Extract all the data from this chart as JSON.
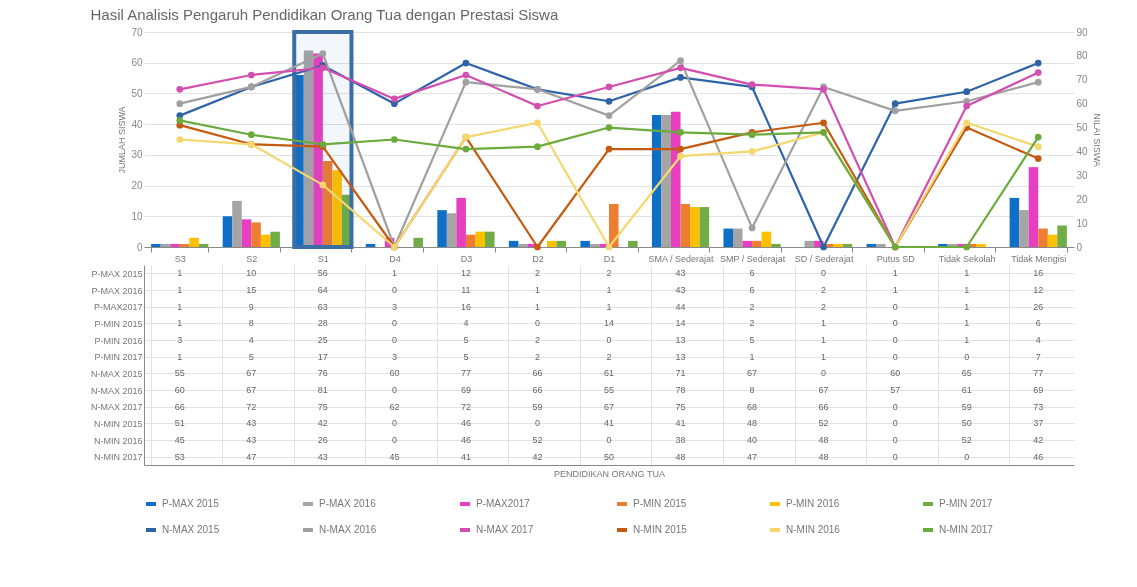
{
  "chart_data": {
    "type": "bar",
    "title": "Hasil Analisis Pengaruh Pendidikan Orang Tua dengan Prestasi Siswa",
    "annotations": [
      "PENDIDIKAN ORANG TUA"
    ],
    "ylabel": "JUMLAH SISWA",
    "y2label": "NILAI SISWA",
    "categories": [
      "S3",
      "S2",
      "S1",
      "D4",
      "D3",
      "D2",
      "D1",
      "SMA / Sederajat",
      "SMP / Sederajat",
      "SD / Sederajat",
      "Putus SD",
      "Tidak Sekolah",
      "Tidak Mengisi"
    ],
    "series": [
      {
        "name": "P-MAX 2015",
        "color": "#0f6fc6",
        "values": [
          1,
          10,
          56,
          1,
          12,
          2,
          2,
          43,
          6,
          0,
          1,
          1,
          16
        ]
      },
      {
        "name": "P-MAX 2016",
        "color": "#a5a5a5",
        "values": [
          1,
          15,
          64,
          0,
          11,
          1,
          1,
          43,
          6,
          2,
          1,
          1,
          12
        ]
      },
      {
        "name": "P-MAX2017",
        "color": "#e83fc0",
        "values": [
          1,
          9,
          63,
          3,
          16,
          1,
          1,
          44,
          2,
          2,
          0,
          1,
          26
        ]
      },
      {
        "name": "P-MIN 2015",
        "color": "#ed7d31",
        "values": [
          1,
          8,
          28,
          0,
          4,
          0,
          14,
          14,
          2,
          1,
          0,
          1,
          6
        ]
      },
      {
        "name": "P-MIN 2016",
        "color": "#ffc000",
        "values": [
          3,
          4,
          25,
          0,
          5,
          2,
          0,
          13,
          5,
          1,
          0,
          1,
          4
        ]
      },
      {
        "name": "P-MIN 2017",
        "color": "#70ad47",
        "values": [
          1,
          5,
          17,
          3,
          5,
          2,
          2,
          13,
          1,
          1,
          0,
          0,
          7
        ]
      },
      {
        "name": "N-MAX 2015",
        "type": "line",
        "axis": "y2",
        "color": "#2e63a8",
        "values": [
          55,
          67,
          76,
          60,
          77,
          66,
          61,
          71,
          67,
          0,
          60,
          65,
          77
        ]
      },
      {
        "name": "N-MAX 2016",
        "type": "line",
        "axis": "y2",
        "color": "#a0a0a0",
        "values": [
          60,
          67,
          81,
          0,
          69,
          66,
          55,
          78,
          8,
          67,
          57,
          61,
          69
        ]
      },
      {
        "name": "N-MAX 2017",
        "type": "line",
        "axis": "y2",
        "color": "#d24fb0",
        "values": [
          66,
          72,
          75,
          62,
          72,
          59,
          67,
          75,
          68,
          66,
          0,
          59,
          73
        ]
      },
      {
        "name": "N-MIN 2015",
        "type": "line",
        "axis": "y2",
        "color": "#c55a11",
        "values": [
          51,
          43,
          42,
          0,
          46,
          0,
          41,
          41,
          48,
          52,
          0,
          50,
          37
        ]
      },
      {
        "name": "N-MIN 2016",
        "type": "line",
        "axis": "y2",
        "color": "#f5d76e",
        "values": [
          45,
          43,
          26,
          0,
          46,
          52,
          0,
          38,
          40,
          48,
          0,
          52,
          42
        ]
      },
      {
        "name": "N-MIN 2017",
        "type": "line",
        "axis": "y2",
        "color": "#6aab3c",
        "values": [
          53,
          47,
          43,
          45,
          41,
          42,
          50,
          48,
          47,
          48,
          0,
          0,
          46
        ]
      }
    ],
    "ylim": [
      0,
      70
    ],
    "yticks": [
      0,
      10,
      20,
      30,
      40,
      50,
      60,
      70
    ],
    "y2lim": [
      0,
      90
    ],
    "y2ticks": [
      0,
      10,
      20,
      30,
      40,
      50,
      60,
      70,
      80,
      90
    ],
    "bands": [
      {
        "axis": "x",
        "from": "S1",
        "to": "S1",
        "color": "#3a6ea5"
      }
    ],
    "grid": "y",
    "marker": "circle",
    "legend": "bottom",
    "data_labels": true
  }
}
